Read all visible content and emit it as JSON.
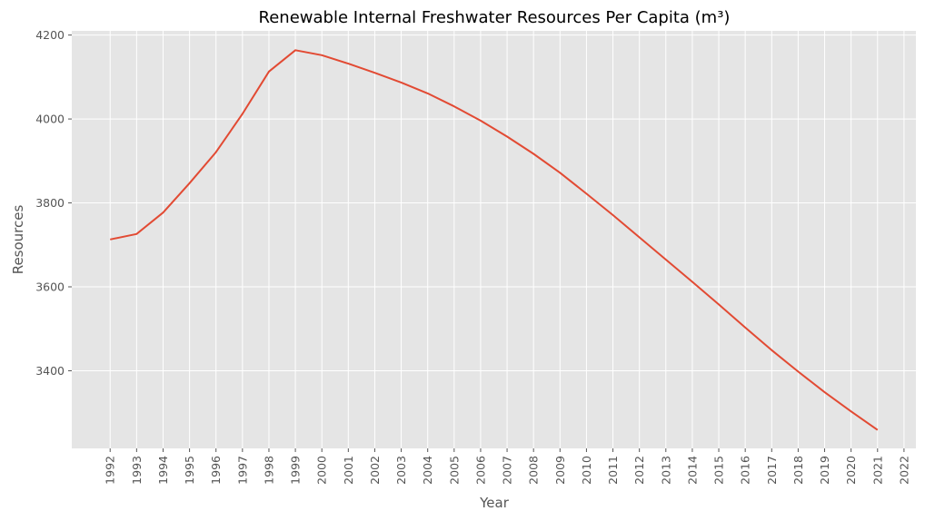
{
  "chart_data": {
    "type": "line",
    "title": "Renewable Internal Freshwater Resources Per Capita (m³)",
    "xlabel": "Year",
    "ylabel": "Resources",
    "x_ticks": [
      "1992",
      "1993",
      "1994",
      "1995",
      "1996",
      "1997",
      "1998",
      "1999",
      "2000",
      "2001",
      "2002",
      "2003",
      "2004",
      "2005",
      "2006",
      "2007",
      "2008",
      "2009",
      "2010",
      "2011",
      "2012",
      "2013",
      "2014",
      "2015",
      "2016",
      "2017",
      "2018",
      "2019",
      "2020",
      "2021",
      "2022"
    ],
    "y_ticks": [
      3400,
      3600,
      3800,
      4000,
      4200
    ],
    "xlim": [
      1990.55,
      2022.45
    ],
    "ylim": [
      3215,
      4210
    ],
    "grid": true,
    "colors": {
      "background": "#e5e5e5",
      "line": "#e24a33",
      "grid": "#ffffff"
    },
    "series": [
      {
        "x": [
          1992,
          1993,
          1994,
          1995,
          1996,
          1997,
          1998,
          1999,
          2000,
          2001,
          2002,
          2003,
          2004,
          2005,
          2006,
          2007,
          2008,
          2009,
          2010,
          2011,
          2012,
          2013,
          2014,
          2015,
          2016,
          2017,
          2018,
          2019,
          2020,
          2021
        ],
        "values": [
          3713,
          3726,
          3777,
          3847,
          3921,
          4012,
          4113,
          4164,
          4152,
          4132,
          4110,
          4087,
          4061,
          4030,
          3996,
          3958,
          3917,
          3872,
          3822,
          3771,
          3718,
          3665,
          3612,
          3558,
          3503,
          3449,
          3398,
          3349,
          3303,
          3259
        ]
      }
    ]
  }
}
